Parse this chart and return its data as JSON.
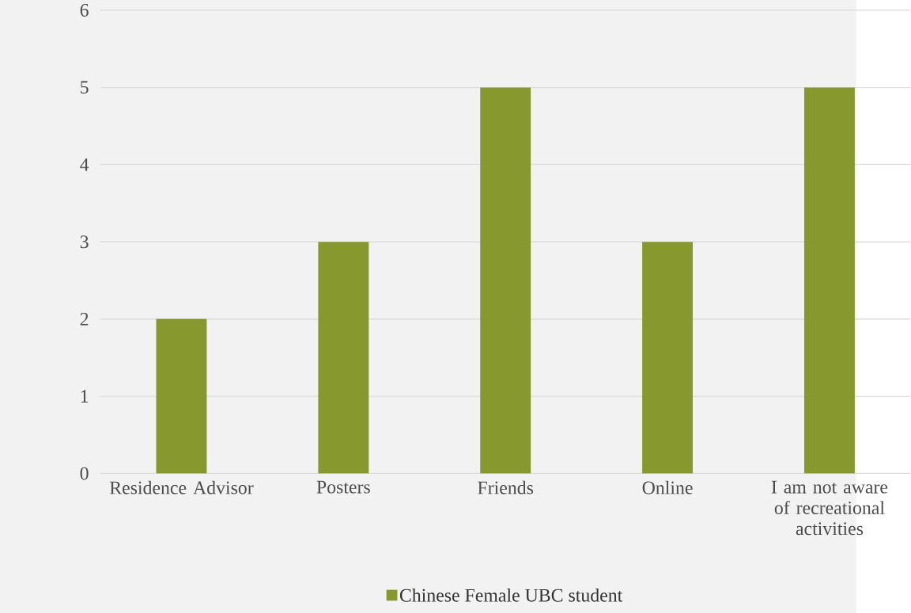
{
  "chart_data": {
    "type": "bar",
    "categories": [
      "Residence Advisor",
      "Posters",
      "Friends",
      "Online",
      "I am not aware of recreational activities"
    ],
    "series": [
      {
        "name": "Chinese Female UBC student",
        "color": "#87992e",
        "values": [
          2,
          3,
          5,
          3,
          5
        ]
      }
    ],
    "ylim": [
      0,
      6
    ],
    "yticks": [
      0,
      1,
      2,
      3,
      4,
      5,
      6
    ],
    "grid": "y",
    "legend": "bottom"
  }
}
